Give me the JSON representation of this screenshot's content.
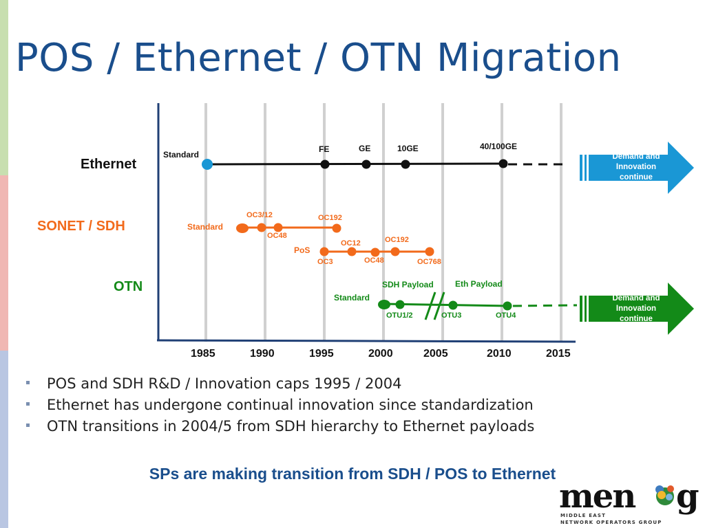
{
  "title": "POS / Ethernet / OTN Migration",
  "rows": {
    "ethernet": "Ethernet",
    "sonet": "SONET / SDH",
    "otn": "OTN"
  },
  "years": [
    "1985",
    "1990",
    "1995",
    "2000",
    "2005",
    "2010",
    "2015"
  ],
  "ethernet": {
    "standard": "Standard",
    "milestones": [
      {
        "label": "FE",
        "year": 1995
      },
      {
        "label": "GE",
        "year": 1998.5
      },
      {
        "label": "10GE",
        "year": 2001.7
      },
      {
        "label": "40/100GE",
        "year": 2010
      }
    ]
  },
  "sonet": {
    "standard": "Standard",
    "line1": [
      "OC3/12",
      "OC48",
      "OC192"
    ],
    "pos": "PoS",
    "line2": [
      "OC3",
      "OC12",
      "OC48",
      "OC192",
      "OC768"
    ]
  },
  "otn": {
    "standard": "Standard",
    "sdh_payload": "SDH Payload",
    "eth_payload": "Eth Payload",
    "points": [
      "OTU1/2",
      "OTU3",
      "OTU4"
    ]
  },
  "arrows": [
    {
      "text": "Demand and Innovation continue",
      "color": "#1a97d5"
    },
    {
      "text": "Demand and Innovation continue",
      "color": "#138a18"
    }
  ],
  "colors": {
    "ethernet": "#111111",
    "sonet": "#f26a1b",
    "otn": "#138a18",
    "axis": "#1f3f75",
    "title": "#1a4e8c"
  },
  "bullets": [
    "POS and SDH R&D / Innovation caps 1995 / 2004",
    "Ethernet has undergone continual innovation since standardization",
    "OTN transitions in 2004/5 from SDH hierarchy to Ethernet payloads"
  ],
  "conclusion": "SPs are making transition from SDH / POS to Ethernet",
  "logo": {
    "name": "menog",
    "line1": "MIDDLE EAST",
    "line2": "NETWORK OPERATORS GROUP"
  }
}
